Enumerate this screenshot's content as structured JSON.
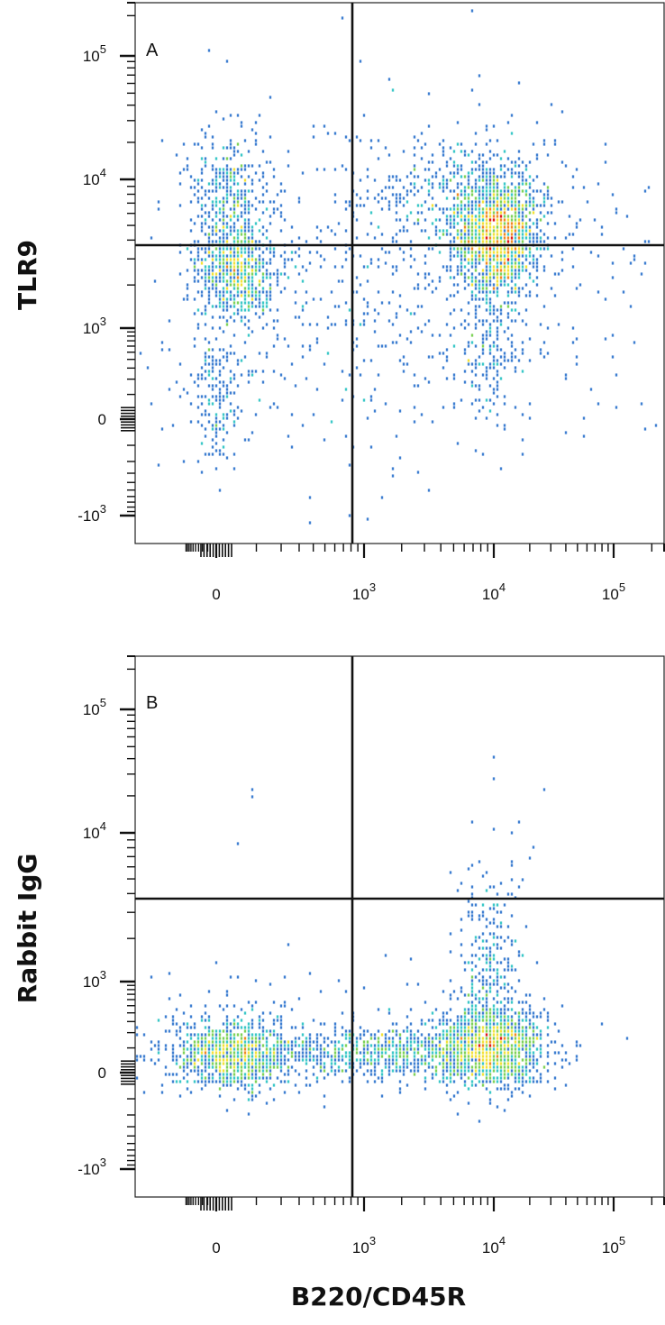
{
  "chart_data": [
    {
      "type": "scatter",
      "subtype": "flow-cytometry-density-dot-plot",
      "panel_label": "A",
      "xlabel": "",
      "ylabel": "TLR9",
      "x_scale": "biexponential",
      "y_scale": "biexponential",
      "x_ticks": [
        {
          "value": 0,
          "base": "0",
          "exp": ""
        },
        {
          "value": 1000,
          "base": "10",
          "exp": "3"
        },
        {
          "value": 10000,
          "base": "10",
          "exp": "4"
        },
        {
          "value": 100000,
          "base": "10",
          "exp": "5"
        }
      ],
      "y_ticks": [
        {
          "value": 100000,
          "base": "10",
          "exp": "5"
        },
        {
          "value": 10000,
          "base": "10",
          "exp": "4"
        },
        {
          "value": 1000,
          "base": "10",
          "exp": "3"
        },
        {
          "value": 0,
          "base": "0",
          "exp": ""
        },
        {
          "value": -1000,
          "base": "-10",
          "exp": "3"
        }
      ],
      "xlim": [
        -1500,
        250000
      ],
      "ylim": [
        -1500,
        250000
      ],
      "quadrant_gate": {
        "x": 850,
        "y": 3500
      },
      "populations": [
        {
          "x": 50,
          "y": 2200,
          "relative_density": "medium",
          "description": "B220-negative TLR9+"
        },
        {
          "x": 10000,
          "y": 3500,
          "relative_density": "highest",
          "description": "B220+ TLR9+"
        },
        {
          "x": 50,
          "y": 5500,
          "relative_density": "low"
        },
        {
          "x": 30,
          "y": 5,
          "relative_density": "low"
        }
      ],
      "color_scale": [
        "#2b3a8f",
        "#3f7fd1",
        "#3cc8c8",
        "#7fd35a",
        "#f3e23a",
        "#f08a24",
        "#e01b1b"
      ]
    },
    {
      "type": "scatter",
      "subtype": "flow-cytometry-density-dot-plot",
      "panel_label": "B",
      "xlabel": "B220/CD45R",
      "ylabel": "Rabbit IgG",
      "x_scale": "biexponential",
      "y_scale": "biexponential",
      "x_ticks": [
        {
          "value": 0,
          "base": "0",
          "exp": ""
        },
        {
          "value": 1000,
          "base": "10",
          "exp": "3"
        },
        {
          "value": 10000,
          "base": "10",
          "exp": "4"
        },
        {
          "value": 100000,
          "base": "10",
          "exp": "5"
        }
      ],
      "y_ticks": [
        {
          "value": 100000,
          "base": "10",
          "exp": "5"
        },
        {
          "value": 10000,
          "base": "10",
          "exp": "4"
        },
        {
          "value": 1000,
          "base": "10",
          "exp": "3"
        },
        {
          "value": 0,
          "base": "0",
          "exp": ""
        },
        {
          "value": -1000,
          "base": "-10",
          "exp": "3"
        }
      ],
      "xlim": [
        -1500,
        250000
      ],
      "ylim": [
        -1500,
        250000
      ],
      "quadrant_gate": {
        "x": 850,
        "y": 3500
      },
      "populations": [
        {
          "x": 50,
          "y": 120,
          "relative_density": "medium",
          "description": "B220-negative IgG-negative"
        },
        {
          "x": 10000,
          "y": 120,
          "relative_density": "highest",
          "description": "B220+ IgG-negative"
        }
      ],
      "color_scale": [
        "#2b3a8f",
        "#3f7fd1",
        "#3cc8c8",
        "#7fd35a",
        "#f3e23a",
        "#f08a24",
        "#e01b1b"
      ]
    }
  ]
}
